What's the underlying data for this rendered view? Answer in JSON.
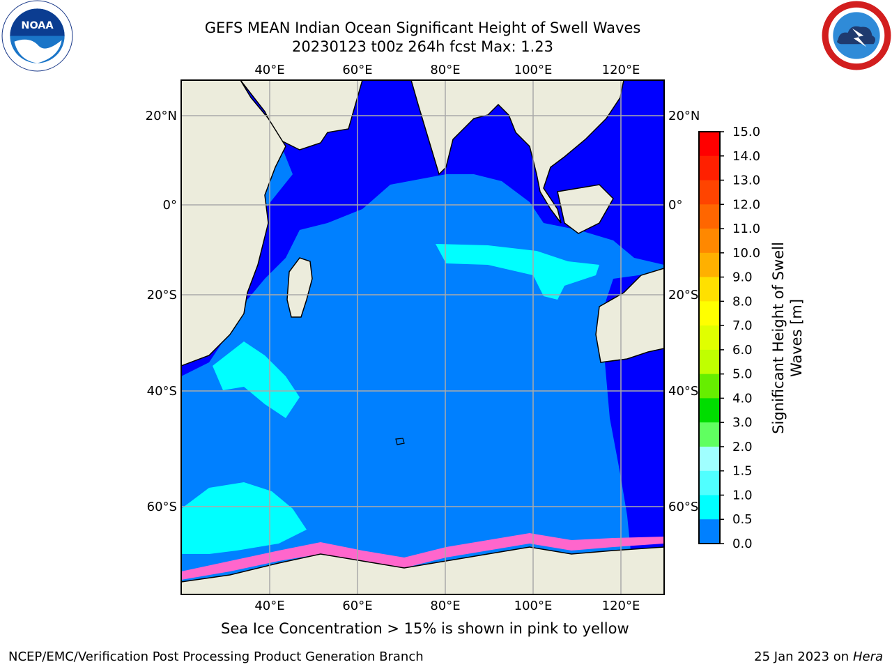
{
  "title": {
    "line1": "GEFS MEAN Indian Ocean Significant Height of Swell Waves",
    "line2": "20230123 t00z 264h fcst   Max: 1.23"
  },
  "logos": {
    "left": "noaa-logo",
    "left_text": "NOAA",
    "right": "nws-logo"
  },
  "map": {
    "lon_ticks": [
      "40°E",
      "60°E",
      "80°E",
      "100°E",
      "120°E"
    ],
    "lat_ticks": [
      "20°N",
      "0°",
      "20°S",
      "40°S",
      "60°S"
    ],
    "ocean_fill_color": "#0080ff",
    "coastal_color": "#0000ff",
    "land_color": "#ececdc",
    "swell_patch_color": "#00ffff",
    "ice_edge_color": "#ff66cc"
  },
  "colorbar": {
    "label_line1": "Significant Height of Swell",
    "label_line2": "Waves [m]",
    "ticks": [
      "15.0",
      "14.0",
      "13.0",
      "12.0",
      "11.0",
      "10.0",
      "9.0",
      "8.0",
      "7.0",
      "6.0",
      "5.0",
      "4.0",
      "3.0",
      "2.0",
      "1.5",
      "1.0",
      "0.5",
      "0.0"
    ],
    "colors_top_to_bottom": [
      "#ff0000",
      "#ff2000",
      "#ff4400",
      "#ff6600",
      "#ff8800",
      "#ffb000",
      "#ffe000",
      "#ffff00",
      "#e0ff00",
      "#c0ff00",
      "#66ee00",
      "#00dd00",
      "#60ff60",
      "#a0ffff",
      "#50ffff",
      "#00ffff",
      "#0080ff",
      "#0000ff"
    ]
  },
  "notes": {
    "ice": "Sea Ice Concentration > 15% is shown in pink to yellow",
    "footer_left": "NCEP/EMC/Verification Post Processing Product Generation Branch",
    "footer_right_date": "25 Jan 2023 on ",
    "footer_right_machine": "Hera"
  }
}
